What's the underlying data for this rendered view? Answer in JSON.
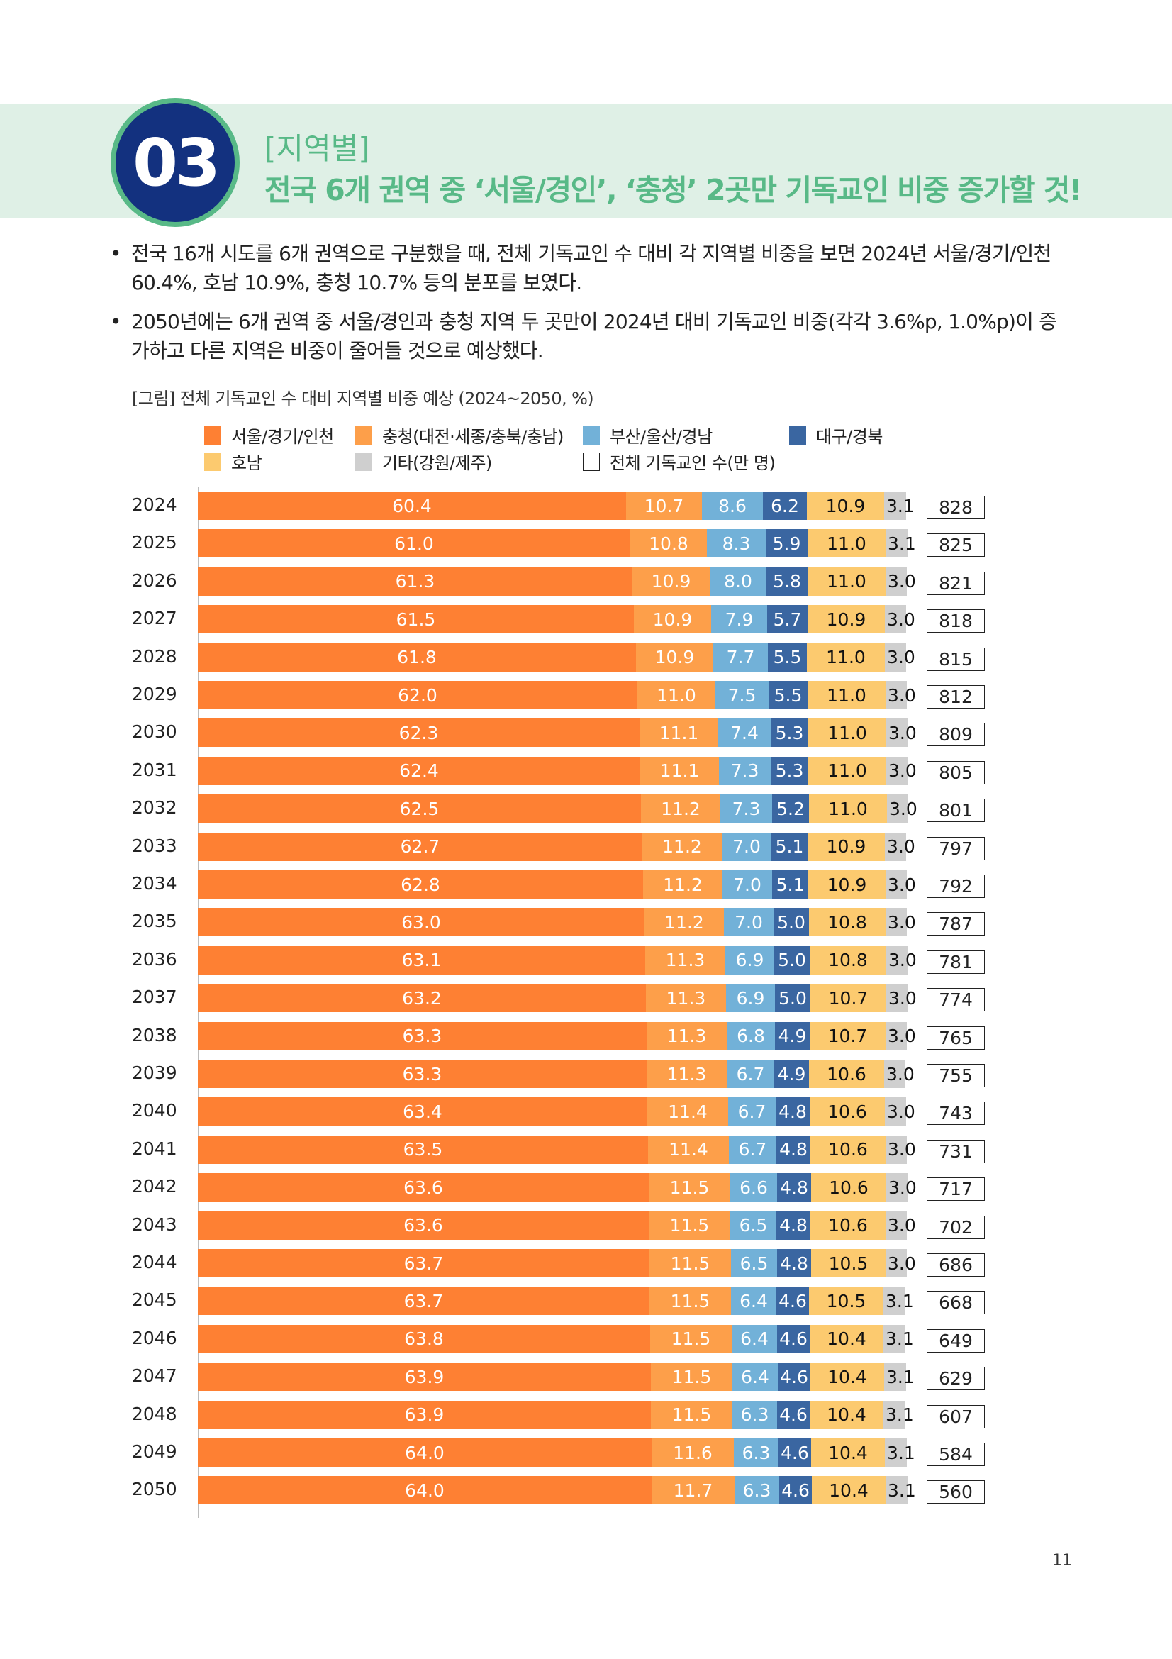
{
  "header": {
    "number": "03",
    "subtitle": "[지역별]",
    "title": "전국 6개 권역 중 ‘서울/경인’, ‘충청’ 2곳만 기독교인 비중 증가할 것!"
  },
  "bullets": [
    "전국 16개 시도를 6개 권역으로 구분했을 때, 전체 기독교인 수 대비 각 지역별 비중을 보면 2024년 서울/경기/인천 60.4%, 호남 10.9%, 충청 10.7% 등의 분포를 보였다.",
    "2050년에는 6개 권역 중 서울/경인과 충청 지역 두 곳만이 2024년 대비 기독교인 비중(각각 3.6%p, 1.0%p)이 증가하고 다른 지역은 비중이 줄어들 것으로 예상했다."
  ],
  "bullet_symbol": "•",
  "page_number": "11",
  "chart_data": {
    "type": "bar",
    "orientation": "horizontal-stacked-100",
    "title": "[그림] 전체 기독교인 수 대비 지역별 비중 예상 (2024~2050, %)",
    "legend": [
      {
        "name": "서울/경기/인천",
        "color": "#fe8033"
      },
      {
        "name": "충청(대전·세종/충북/충남)",
        "color": "#fd9f4a"
      },
      {
        "name": "부산/울산/경남",
        "color": "#72b1d8"
      },
      {
        "name": "대구/경북",
        "color": "#3a66a1"
      },
      {
        "name": "호남",
        "color": "#fcca6f"
      },
      {
        "name": "기타(강원/제주)",
        "color": "#cfcfcf"
      },
      {
        "name": "전체 기독교인 수(만 명)",
        "color": "#ffffff"
      }
    ],
    "legend_placement": "top",
    "label_colors": [
      "#ffffff",
      "#ffffff",
      "#ffffff",
      "#ffffff",
      "#111111",
      "#111111"
    ],
    "categories": [
      "2024",
      "2025",
      "2026",
      "2027",
      "2028",
      "2029",
      "2030",
      "2031",
      "2032",
      "2033",
      "2034",
      "2035",
      "2036",
      "2037",
      "2038",
      "2039",
      "2040",
      "2041",
      "2042",
      "2043",
      "2044",
      "2045",
      "2046",
      "2047",
      "2048",
      "2049",
      "2050"
    ],
    "series": [
      {
        "name": "서울/경기/인천",
        "values": [
          "60.4",
          "61.0",
          "61.3",
          "61.5",
          "61.8",
          "62.0",
          "62.3",
          "62.4",
          "62.5",
          "62.7",
          "62.8",
          "63.0",
          "63.1",
          "63.2",
          "63.3",
          "63.3",
          "63.4",
          "63.5",
          "63.6",
          "63.6",
          "63.7",
          "63.7",
          "63.8",
          "63.9",
          "63.9",
          "64.0",
          "64.0"
        ]
      },
      {
        "name": "충청(대전·세종/충북/충남)",
        "values": [
          "10.7",
          "10.8",
          "10.9",
          "10.9",
          "10.9",
          "11.0",
          "11.1",
          "11.1",
          "11.2",
          "11.2",
          "11.2",
          "11.2",
          "11.3",
          "11.3",
          "11.3",
          "11.3",
          "11.4",
          "11.4",
          "11.5",
          "11.5",
          "11.5",
          "11.5",
          "11.5",
          "11.5",
          "11.5",
          "11.6",
          "11.7"
        ]
      },
      {
        "name": "부산/울산/경남",
        "values": [
          "8.6",
          "8.3",
          "8.0",
          "7.9",
          "7.7",
          "7.5",
          "7.4",
          "7.3",
          "7.3",
          "7.0",
          "7.0",
          "7.0",
          "6.9",
          "6.9",
          "6.8",
          "6.7",
          "6.7",
          "6.7",
          "6.6",
          "6.5",
          "6.5",
          "6.4",
          "6.4",
          "6.4",
          "6.3",
          "6.3",
          "6.3"
        ]
      },
      {
        "name": "대구/경북",
        "values": [
          "6.2",
          "5.9",
          "5.8",
          "5.7",
          "5.5",
          "5.5",
          "5.3",
          "5.3",
          "5.2",
          "5.1",
          "5.1",
          "5.0",
          "5.0",
          "5.0",
          "4.9",
          "4.9",
          "4.8",
          "4.8",
          "4.8",
          "4.8",
          "4.8",
          "4.6",
          "4.6",
          "4.6",
          "4.6",
          "4.6",
          "4.6"
        ]
      },
      {
        "name": "호남",
        "values": [
          "10.9",
          "11.0",
          "11.0",
          "10.9",
          "11.0",
          "11.0",
          "11.0",
          "11.0",
          "11.0",
          "10.9",
          "10.9",
          "10.8",
          "10.8",
          "10.7",
          "10.7",
          "10.6",
          "10.6",
          "10.6",
          "10.6",
          "10.6",
          "10.5",
          "10.5",
          "10.4",
          "10.4",
          "10.4",
          "10.4",
          "10.4"
        ]
      },
      {
        "name": "기타(강원/제주)",
        "values": [
          "3.1",
          "3.1",
          "3.0",
          "3.0",
          "3.0",
          "3.0",
          "3.0",
          "3.0",
          "3.0",
          "3.0",
          "3.0",
          "3.0",
          "3.0",
          "3.0",
          "3.0",
          "3.0",
          "3.0",
          "3.0",
          "3.0",
          "3.0",
          "3.0",
          "3.1",
          "3.1",
          "3.1",
          "3.1",
          "3.1",
          "3.1"
        ]
      }
    ],
    "totals": {
      "name": "전체 기독교인 수(만 명)",
      "values": [
        "828",
        "825",
        "821",
        "818",
        "815",
        "812",
        "809",
        "805",
        "801",
        "797",
        "792",
        "787",
        "781",
        "774",
        "765",
        "755",
        "743",
        "731",
        "717",
        "702",
        "686",
        "668",
        "649",
        "629",
        "607",
        "584",
        "560"
      ]
    }
  }
}
